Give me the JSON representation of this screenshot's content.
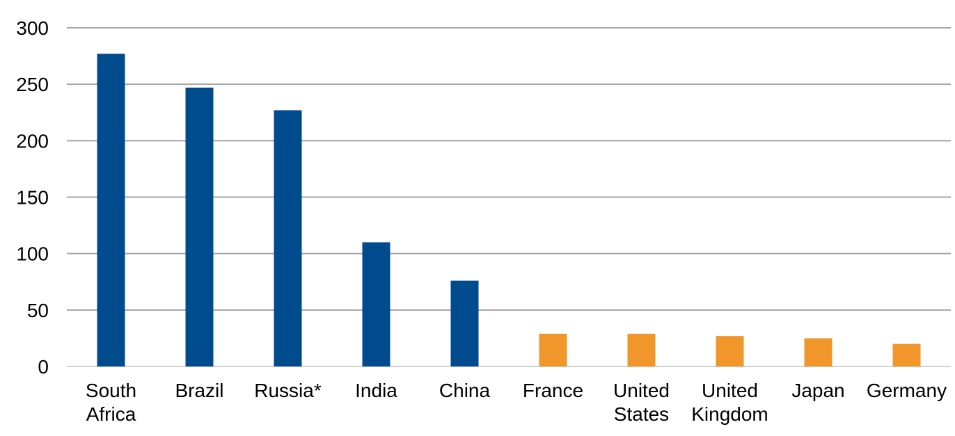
{
  "chart_data": {
    "type": "bar",
    "title": "",
    "xlabel": "",
    "ylabel": "",
    "ylim": [
      0,
      300
    ],
    "yticks": [
      0,
      50,
      100,
      150,
      200,
      250,
      300
    ],
    "grid": true,
    "categories": [
      [
        "South",
        "Africa"
      ],
      [
        "Brazil"
      ],
      [
        "Russia*"
      ],
      [
        "India"
      ],
      [
        "China"
      ],
      [
        "France"
      ],
      [
        "United",
        "States"
      ],
      [
        "United",
        "Kingdom"
      ],
      [
        "Japan"
      ],
      [
        "Germany"
      ]
    ],
    "values": [
      277,
      247,
      227,
      110,
      76,
      29,
      29,
      27,
      25,
      20
    ],
    "bar_colors": [
      "#004b8d",
      "#004b8d",
      "#004b8d",
      "#004b8d",
      "#004b8d",
      "#f0962a",
      "#f0962a",
      "#f0962a",
      "#f0962a",
      "#f0962a"
    ],
    "grid_color": "#a6a6a6",
    "axis_color": "#d0d0d0"
  }
}
